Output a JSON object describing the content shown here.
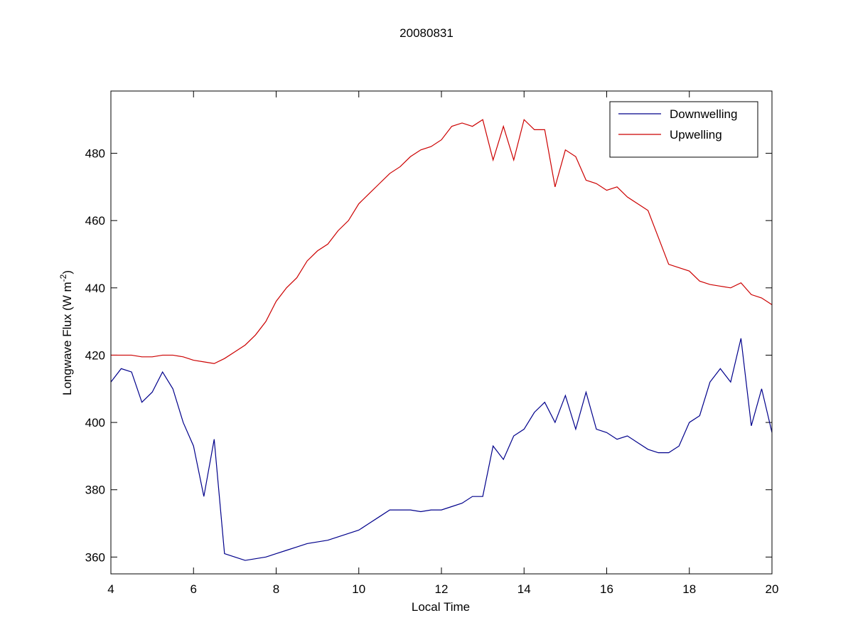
{
  "chart_data": {
    "type": "line",
    "title": "20080831",
    "xlabel": "Local Time",
    "ylabel": [
      "Longwave Flux (W m",
      "-2",
      ")"
    ],
    "x": [
      4,
      4.25,
      4.5,
      4.75,
      5,
      5.25,
      5.5,
      5.75,
      6,
      6.25,
      6.5,
      6.75,
      7,
      7.25,
      7.5,
      7.75,
      8,
      8.25,
      8.5,
      8.75,
      9,
      9.25,
      9.5,
      9.75,
      10,
      10.25,
      10.5,
      10.75,
      11,
      11.25,
      11.5,
      11.75,
      12,
      12.25,
      12.5,
      12.75,
      13,
      13.25,
      13.5,
      13.75,
      14,
      14.25,
      14.5,
      14.75,
      15,
      15.25,
      15.5,
      15.75,
      16,
      16.25,
      16.5,
      16.75,
      17,
      17.25,
      17.5,
      17.75,
      18,
      18.25,
      18.5,
      18.75,
      19,
      19.25,
      19.5,
      19.75,
      20
    ],
    "series": [
      {
        "name": "Downwelling",
        "color": "#00008b",
        "values": [
          412,
          416,
          415,
          406,
          409,
          415,
          410,
          400,
          393,
          378,
          395,
          361,
          360,
          359,
          359.5,
          360,
          361,
          362,
          363,
          364,
          364.5,
          365,
          366,
          367,
          368,
          370,
          372,
          374,
          374,
          374,
          373.5,
          374,
          374,
          375,
          376,
          378,
          378,
          393,
          389,
          396,
          398,
          403,
          406,
          400,
          408,
          398,
          409,
          398,
          397,
          395,
          396,
          394,
          392,
          391,
          391,
          393,
          400,
          402,
          412,
          416,
          412,
          425,
          399,
          410,
          397
        ]
      },
      {
        "name": "Upwelling",
        "color": "#cc0000",
        "values": [
          420,
          420,
          420,
          419.5,
          419.5,
          420,
          420,
          419.5,
          418.5,
          418,
          417.5,
          419,
          421,
          423,
          426,
          430,
          436,
          440,
          443,
          448,
          451,
          453,
          457,
          460,
          465,
          468,
          471,
          474,
          476,
          479,
          481,
          482,
          484,
          488,
          489,
          488,
          490,
          478,
          488,
          478,
          490,
          487,
          487,
          470,
          481,
          479,
          472,
          471,
          469,
          470,
          467,
          465,
          463,
          455,
          447,
          446,
          445,
          442,
          441,
          440.5,
          440,
          441.5,
          438,
          437,
          435
        ]
      }
    ],
    "xlim": [
      4,
      20
    ],
    "ylim": [
      355,
      498.5
    ],
    "xticks": [
      4,
      6,
      8,
      10,
      12,
      14,
      16,
      18,
      20
    ],
    "yticks": [
      360,
      380,
      400,
      420,
      440,
      460,
      480
    ],
    "grid": false,
    "legend": "upper right"
  }
}
